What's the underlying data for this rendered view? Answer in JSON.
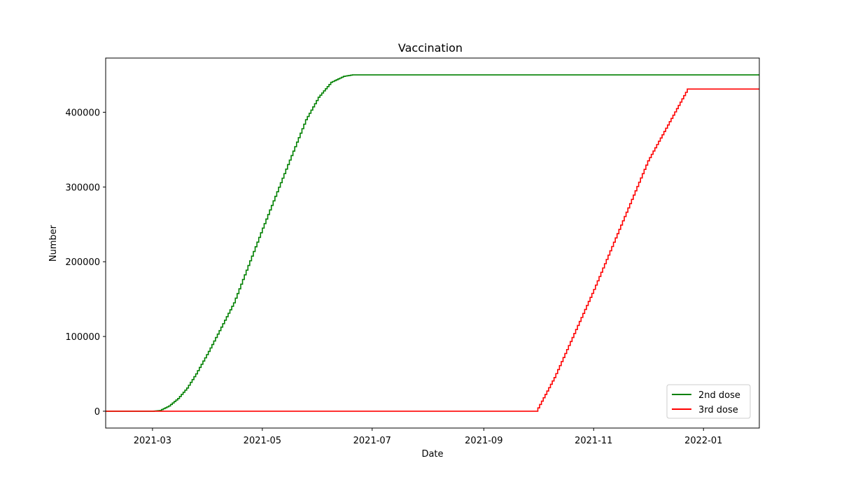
{
  "chart_data": {
    "type": "line",
    "title": "Vaccination",
    "xlabel": "Date",
    "ylabel": "Number",
    "x_tick_labels": [
      "2021-03",
      "2021-05",
      "2021-07",
      "2021-09",
      "2021-11",
      "2022-01"
    ],
    "x_tick_dates": [
      "2021-03-01",
      "2021-05-01",
      "2021-07-01",
      "2021-09-01",
      "2021-11-01",
      "2022-01-01"
    ],
    "y_tick_labels": [
      "0",
      "100000",
      "200000",
      "300000",
      "400000"
    ],
    "y_tick_values": [
      0,
      100000,
      200000,
      300000,
      400000
    ],
    "xlim": [
      "2021-02-03",
      "2022-02-01"
    ],
    "ylim": [
      -22500,
      472500
    ],
    "grid": false,
    "legend_position": "lower-right",
    "line_style": "step",
    "series": [
      {
        "name": "2nd dose",
        "color": "#008000",
        "points": [
          [
            "2021-02-03",
            0
          ],
          [
            "2021-03-01",
            0
          ],
          [
            "2021-03-05",
            1000
          ],
          [
            "2021-03-10",
            7000
          ],
          [
            "2021-03-15",
            17000
          ],
          [
            "2021-03-20",
            31000
          ],
          [
            "2021-03-25",
            50000
          ],
          [
            "2021-04-01",
            80000
          ],
          [
            "2021-04-15",
            145000
          ],
          [
            "2021-05-01",
            245000
          ],
          [
            "2021-05-15",
            330000
          ],
          [
            "2021-05-25",
            390000
          ],
          [
            "2021-06-01",
            420000
          ],
          [
            "2021-06-08",
            440000
          ],
          [
            "2021-06-15",
            448000
          ],
          [
            "2021-06-20",
            450000
          ],
          [
            "2022-02-01",
            450000
          ]
        ]
      },
      {
        "name": "3rd dose",
        "color": "#ff0000",
        "points": [
          [
            "2021-02-03",
            0
          ],
          [
            "2021-09-30",
            0
          ],
          [
            "2021-10-10",
            45000
          ],
          [
            "2021-11-01",
            163000
          ],
          [
            "2021-12-01",
            335000
          ],
          [
            "2021-12-23",
            431000
          ],
          [
            "2022-02-01",
            431000
          ]
        ]
      }
    ]
  }
}
